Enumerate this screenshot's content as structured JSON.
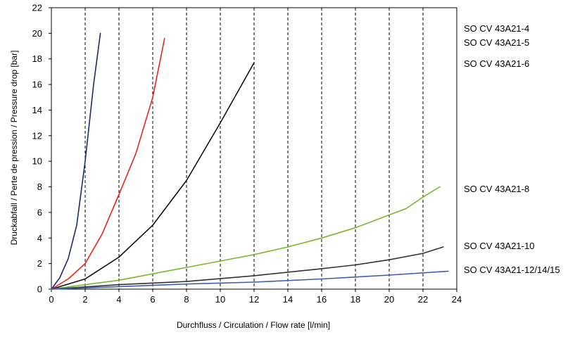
{
  "chart_data": {
    "type": "line",
    "xlabel": "Durchfluss / Circulation / Flow rate [l/min]",
    "ylabel": "Druckabfall / Perte de pression / Pressure drop [bar]",
    "xlim": [
      0,
      24
    ],
    "ylim": [
      0,
      22
    ],
    "xticks": [
      0,
      2,
      4,
      6,
      8,
      10,
      12,
      14,
      16,
      18,
      20,
      22,
      24
    ],
    "yticks": [
      0,
      2,
      4,
      6,
      8,
      10,
      12,
      14,
      16,
      18,
      20,
      22
    ],
    "grid": "vertical dashed",
    "legend": "right, labels beside curve ends",
    "series": [
      {
        "name": "SO CV 43A21-4",
        "color": "#1f2a6e",
        "x": [
          0,
          0.5,
          1.0,
          1.5,
          2.0,
          2.5,
          2.9
        ],
        "y": [
          0,
          0.9,
          2.4,
          5.0,
          10.0,
          16.0,
          20.0
        ]
      },
      {
        "name": "SO CV 43A21-5",
        "color": "#e8251f",
        "x": [
          0,
          1,
          2,
          3,
          4,
          5,
          6,
          6.7
        ],
        "y": [
          0,
          0.8,
          2.0,
          4.3,
          7.4,
          10.6,
          15.0,
          19.6
        ]
      },
      {
        "name": "SO CV 43A21-6",
        "color": "#111111",
        "x": [
          0,
          2,
          4,
          6,
          8,
          10,
          12
        ],
        "y": [
          0,
          0.8,
          2.5,
          5.0,
          8.5,
          13.0,
          17.7
        ]
      },
      {
        "name": "SO CV 43A21-8",
        "color": "#77b82a",
        "x": [
          0,
          4,
          8,
          10,
          12,
          14,
          16,
          18,
          20,
          21,
          22,
          23
        ],
        "y": [
          0,
          0.7,
          1.7,
          2.2,
          2.7,
          3.3,
          4.0,
          4.8,
          5.8,
          6.3,
          7.2,
          8.0
        ]
      },
      {
        "name": "SO CV 43A21-10",
        "color": "#333333",
        "x": [
          0,
          4,
          8,
          12,
          16,
          18,
          20,
          22,
          23.2
        ],
        "y": [
          0,
          0.35,
          0.6,
          1.05,
          1.6,
          1.9,
          2.3,
          2.8,
          3.3
        ]
      },
      {
        "name": "SO CV 43A21-12/14/15",
        "color": "#3a5fb0",
        "x": [
          0,
          4,
          8,
          12,
          16,
          20,
          23.5
        ],
        "y": [
          0,
          0.2,
          0.4,
          0.55,
          0.8,
          1.1,
          1.4
        ]
      }
    ]
  },
  "legend_labels": [
    "SO CV 43A21-4",
    "SO CV 43A21-5",
    "SO CV 43A21-6",
    "SO CV 43A21-8",
    "SO CV 43A21-10",
    "SO CV 43A21-12/14/15"
  ]
}
